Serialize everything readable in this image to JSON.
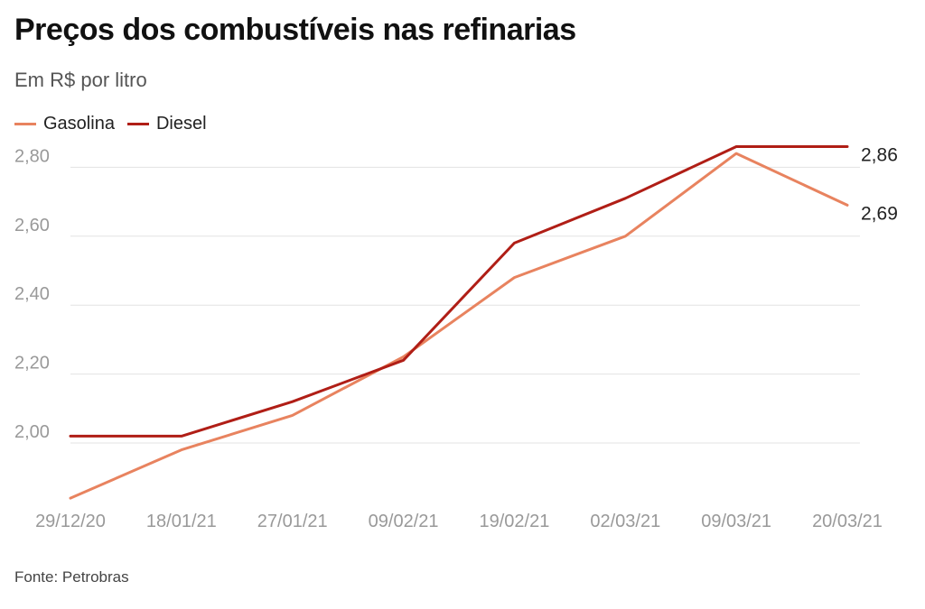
{
  "title": "Preços dos combustíveis nas refinarias",
  "subtitle": "Em R$ por litro",
  "source": "Fonte: Petrobras",
  "colors": {
    "gasolina": "#e8835f",
    "diesel": "#b01e16",
    "grid": "#e3e3e3"
  },
  "chart_data": {
    "type": "line",
    "categories": [
      "29/12/20",
      "18/01/21",
      "27/01/21",
      "09/02/21",
      "19/02/21",
      "02/03/21",
      "09/03/21",
      "20/03/21"
    ],
    "series": [
      {
        "name": "Gasolina",
        "color": "#e8835f",
        "values": [
          1.84,
          1.98,
          2.08,
          2.25,
          2.48,
          2.6,
          2.84,
          2.69
        ]
      },
      {
        "name": "Diesel",
        "color": "#b01e16",
        "values": [
          2.02,
          2.02,
          2.12,
          2.24,
          2.58,
          2.71,
          2.86,
          2.86
        ]
      }
    ],
    "yticks": [
      "2,00",
      "2,20",
      "2,40",
      "2,60",
      "2,80"
    ],
    "ytick_values": [
      2.0,
      2.2,
      2.4,
      2.6,
      2.8
    ],
    "end_labels": [
      "2,69",
      "2,86"
    ],
    "ylim": [
      1.84,
      2.86
    ],
    "grid": true,
    "legend": "top-left"
  }
}
